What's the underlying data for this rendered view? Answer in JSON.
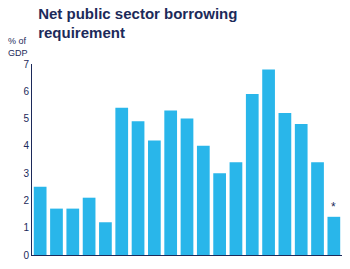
{
  "chart_data": {
    "type": "bar",
    "title": "Net public sector borrowing requirement",
    "y_label": "% of GDP",
    "categories": [
      null,
      null,
      null,
      null,
      null,
      null,
      null,
      null,
      null,
      null,
      null,
      null,
      null,
      null,
      null,
      null,
      null,
      null,
      null
    ],
    "values": [
      2.5,
      1.7,
      1.7,
      2.1,
      1.2,
      5.4,
      4.9,
      4.2,
      5.3,
      5.0,
      4.0,
      3.0,
      3.4,
      5.9,
      6.8,
      5.2,
      4.8,
      3.4,
      1.4
    ],
    "color": "#29b6ea",
    "ylim": [
      0,
      7
    ],
    "yticks": [
      0,
      1,
      2,
      3,
      4,
      5,
      6,
      7
    ],
    "grid": false,
    "annotations": [
      {
        "text": "*",
        "index": 18
      }
    ]
  }
}
